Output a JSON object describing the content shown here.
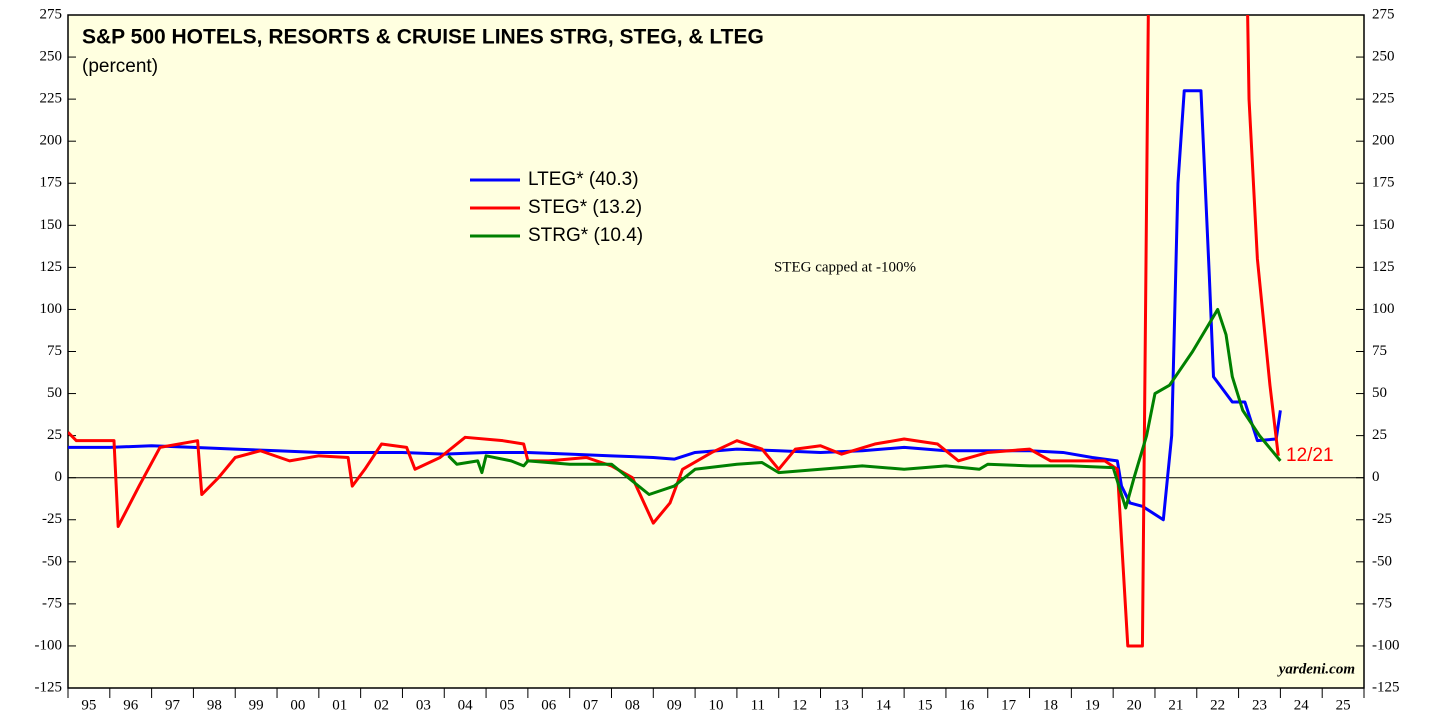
{
  "chart_data": {
    "type": "line",
    "title": "S&P 500 HOTELS, RESORTS & CRUISE LINES STRG, STEG, & LTEG",
    "subtitle": "(percent)",
    "annotations": [
      "STEG capped at -100%",
      "12/21",
      "yardeni.com"
    ],
    "categories": [
      "95",
      "96",
      "97",
      "98",
      "99",
      "00",
      "01",
      "02",
      "03",
      "04",
      "05",
      "06",
      "07",
      "08",
      "09",
      "10",
      "11",
      "12",
      "13",
      "14",
      "15",
      "16",
      "17",
      "18",
      "19",
      "20",
      "21",
      "22",
      "23",
      "24",
      "25"
    ],
    "xlim": [
      1995,
      2026
    ],
    "xticks": [
      1995,
      1996,
      1997,
      1998,
      1999,
      2000,
      2001,
      2002,
      2003,
      2004,
      2005,
      2006,
      2007,
      2008,
      2009,
      2010,
      2011,
      2012,
      2013,
      2014,
      2015,
      2016,
      2017,
      2018,
      2019,
      2020,
      2021,
      2022,
      2023,
      2024,
      2025,
      2026
    ],
    "ylim": [
      -125,
      275
    ],
    "yticks": [
      -125,
      -100,
      -75,
      -50,
      -25,
      0,
      25,
      50,
      75,
      100,
      125,
      150,
      175,
      200,
      225,
      250,
      275
    ],
    "series": [
      {
        "name": "LTEG* (40.3)",
        "color": "#0000ff",
        "x": [
          1995,
          1996,
          1997,
          1998,
          1999,
          2000,
          2001,
          2002,
          2003,
          2004,
          2005,
          2006,
          2007,
          2008,
          2009,
          2009.5,
          2010,
          2011,
          2012,
          2013,
          2014,
          2015,
          2016,
          2017,
          2018,
          2018.8,
          2019.5,
          2020.1,
          2020.2,
          2020.4,
          2020.7,
          2021.2,
          2021.4,
          2021.55,
          2021.7,
          2022.1,
          2022.3,
          2022.4,
          2022.85,
          2023.15,
          2023.45,
          2023.9,
          2024.0
        ],
        "values": [
          18,
          18,
          19,
          18,
          17,
          16,
          15,
          15,
          15,
          14,
          15,
          15,
          14,
          13,
          12,
          11,
          15,
          17,
          16,
          15,
          16,
          18,
          16,
          16,
          16,
          15,
          12,
          10,
          -5,
          -15,
          -17,
          -25,
          25,
          175,
          230,
          230,
          120,
          60,
          45,
          45,
          22,
          23,
          40
        ]
      },
      {
        "name": "STEG* (13.2)",
        "color": "#ff0000",
        "x": [
          1995.0,
          1995.2,
          1996.1,
          1996.2,
          1996.7,
          1997.2,
          1998.1,
          1998.2,
          1998.6,
          1999.0,
          1999.6,
          2000.3,
          2001.0,
          2001.7,
          2001.8,
          2002.1,
          2002.5,
          2003.1,
          2003.3,
          2003.9,
          2004.5,
          2005.4,
          2005.9,
          2006.0,
          2006.5,
          2007.4,
          2008.0,
          2008.5,
          2009.0,
          2009.4,
          2009.7,
          2010.4,
          2011.0,
          2011.6,
          2012.0,
          2012.4,
          2013.0,
          2013.5,
          2014.3,
          2015.0,
          2015.8,
          2016.3,
          2017.0,
          2018.0,
          2018.5,
          2019.8,
          2020.1,
          2020.35,
          2020.7,
          2020.85,
          2023.2,
          2023.25,
          2023.45,
          2023.75,
          2023.95
        ],
        "values": [
          27,
          22,
          22,
          -29,
          -5,
          18,
          22,
          -10,
          0,
          12,
          16,
          10,
          13,
          12,
          -5,
          5,
          20,
          18,
          5,
          12,
          24,
          22,
          20,
          10,
          10,
          12,
          7,
          0,
          -27,
          -15,
          5,
          15,
          22,
          17,
          5,
          17,
          19,
          14,
          20,
          23,
          20,
          10,
          15,
          17,
          10,
          10,
          5,
          -100,
          -100,
          300,
          300,
          225,
          130,
          55,
          13
        ]
      },
      {
        "name": "STRG* (10.4)",
        "color": "#008000",
        "x": [
          2004.1,
          2004.3,
          2004.8,
          2004.9,
          2005.0,
          2005.6,
          2005.9,
          2006.0,
          2007.0,
          2008.0,
          2008.9,
          2009.5,
          2010.0,
          2011.0,
          2011.6,
          2012.0,
          2013.0,
          2014.0,
          2015.0,
          2016.0,
          2016.8,
          2017.0,
          2018.0,
          2019.0,
          2020.0,
          2020.3,
          2020.5,
          2020.8,
          2021.0,
          2021.35,
          2021.9,
          2022.5,
          2022.7,
          2022.85,
          2023.1,
          2023.5,
          2024.0
        ],
        "values": [
          13,
          8,
          10,
          3,
          13,
          10,
          7,
          10,
          8,
          8,
          -10,
          -5,
          5,
          8,
          9,
          3,
          5,
          7,
          5,
          7,
          5,
          8,
          7,
          7,
          6,
          -18,
          0,
          25,
          50,
          55,
          75,
          100,
          85,
          60,
          40,
          25,
          10
        ]
      }
    ]
  }
}
